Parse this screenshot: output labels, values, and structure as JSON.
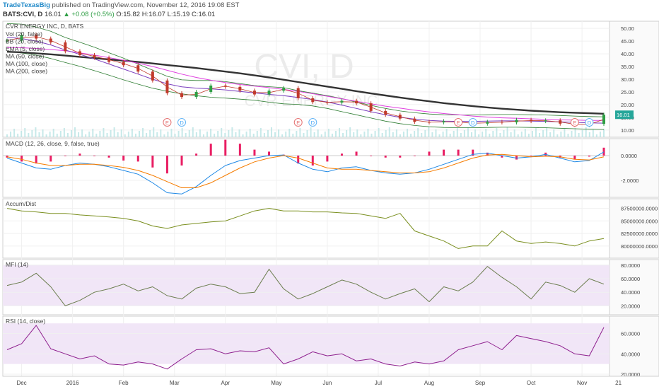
{
  "header": {
    "publisher": "TradeTexasBig",
    "published_text": "published on TradingView.com, November 12, 2016 19:08 EST",
    "symbol": "BATS:CVI, D",
    "last": "16.01",
    "change": "▲ +0.08 (+0.5%)",
    "ohlc": "O:15.82 H:16.07 L:15.19 C:16.01"
  },
  "colors": {
    "up": "#2e9e44",
    "down": "#c0392b",
    "ma200": "#333333",
    "ma100": "#e040e0",
    "ma50": "#7b3fbf",
    "bb": "#2e7d32",
    "macd": "#1e88e5",
    "signal": "#f57c00",
    "hist": "#e91e63",
    "accum": "#7a8f1f",
    "mfi": "#6b7d4e",
    "rsi": "#8e1f8e",
    "band": "#f1e6f7"
  },
  "chart_data": [
    {
      "id": "price",
      "type": "line",
      "title": "CVR ENERGY INC, D, BATS",
      "watermark": "CVI, D",
      "watermark_sub": "CVR ENERGY INC",
      "legend": [
        "Vol (20, false)",
        "BB (20, close)",
        "EMA (5, close)",
        "MA (50, close)",
        "MA (100, close)",
        "MA (200, close)"
      ],
      "ylim": [
        8,
        52
      ],
      "yticks": [
        "50.00",
        "45.00",
        "40.00",
        "35.00",
        "30.00",
        "25.00",
        "20.00",
        "15.00",
        "10.00"
      ],
      "last_label": "16.01",
      "close": [
        45.2,
        47.5,
        46.0,
        44.5,
        41.0,
        39.5,
        38.5,
        36.8,
        35.5,
        33.0,
        29.5,
        24.5,
        23.0,
        25.0,
        27.5,
        27.0,
        25.5,
        24.0,
        25.5,
        26.5,
        22.5,
        21.0,
        20.8,
        21.5,
        20.5,
        17.5,
        16.0,
        14.5,
        13.2,
        13.0,
        13.5,
        12.8,
        12.5,
        13.2,
        13.0,
        14.0,
        13.5,
        13.8,
        12.5,
        12.0,
        12.4,
        16.01
      ],
      "ma200": [
        40.8,
        40.6,
        40.2,
        39.8,
        39.3,
        38.8,
        38.3,
        37.8,
        37.3,
        36.8,
        36.2,
        35.6,
        35.0,
        34.4,
        33.7,
        33.0,
        32.3,
        31.5,
        30.7,
        29.8,
        28.9,
        28.0,
        27.1,
        26.2,
        25.3,
        24.4,
        23.6,
        22.8,
        22.0,
        21.3,
        20.6,
        20.0,
        19.4,
        18.9,
        18.4,
        18.0,
        17.6,
        17.3,
        17.0,
        16.8,
        16.6,
        16.4
      ],
      "ma100": [
        42.5,
        42.4,
        42.1,
        41.7,
        41.2,
        40.4,
        39.5,
        38.5,
        37.5,
        36.3,
        35.0,
        33.5,
        32.0,
        30.7,
        29.6,
        28.7,
        27.9,
        27.3,
        26.7,
        26.0,
        25.2,
        24.3,
        23.3,
        22.3,
        21.3,
        20.3,
        19.4,
        18.6,
        17.8,
        17.1,
        16.5,
        16.0,
        15.5,
        15.1,
        14.8,
        14.6,
        14.4,
        14.2,
        14.0,
        13.9,
        13.8,
        13.8
      ],
      "ma50": [
        46.5,
        46.0,
        45.0,
        43.5,
        41.5,
        39.8,
        38.0,
        36.0,
        34.0,
        32.0,
        30.0,
        28.2,
        27.0,
        26.5,
        26.2,
        25.8,
        25.2,
        24.6,
        24.0,
        23.5,
        22.8,
        22.0,
        21.0,
        19.8,
        18.5,
        17.2,
        16.0,
        15.0,
        14.3,
        13.8,
        13.5,
        13.4,
        13.4,
        13.5,
        13.6,
        13.6,
        13.5,
        13.4,
        13.2,
        13.0,
        12.8,
        12.7
      ],
      "events": [
        {
          "i": 11,
          "label": "E"
        },
        {
          "i": 12,
          "label": "D"
        },
        {
          "i": 20,
          "label": "E"
        },
        {
          "i": 21,
          "label": "D"
        },
        {
          "i": 31,
          "label": "E"
        },
        {
          "i": 32,
          "label": "D"
        },
        {
          "i": 39,
          "label": "E"
        },
        {
          "i": 40,
          "label": "D"
        }
      ]
    },
    {
      "id": "macd",
      "type": "line",
      "legend": "MACD (12, 26, close, 9, false, true)",
      "ylim": [
        -3.2,
        1.2
      ],
      "yticks": [
        "0.0000",
        "-2.0000"
      ],
      "macd": [
        -0.2,
        -0.6,
        -1.0,
        -1.1,
        -0.8,
        -0.6,
        -0.7,
        -0.9,
        -1.2,
        -1.5,
        -2.2,
        -3.0,
        -3.1,
        -2.5,
        -1.6,
        -0.8,
        -0.4,
        -0.2,
        0.0,
        0.05,
        -0.6,
        -1.1,
        -1.3,
        -1.0,
        -0.9,
        -1.2,
        -1.4,
        -1.5,
        -1.4,
        -1.1,
        -0.7,
        -0.3,
        0.1,
        0.2,
        0.0,
        -0.2,
        -0.1,
        0.1,
        -0.2,
        -0.5,
        -0.4,
        0.3
      ],
      "signal": [
        -0.1,
        -0.3,
        -0.6,
        -0.8,
        -0.8,
        -0.7,
        -0.7,
        -0.8,
        -0.95,
        -1.2,
        -1.6,
        -2.1,
        -2.6,
        -2.6,
        -2.2,
        -1.6,
        -1.0,
        -0.5,
        -0.2,
        0.0,
        -0.2,
        -0.6,
        -1.0,
        -1.1,
        -1.1,
        -1.2,
        -1.3,
        -1.4,
        -1.4,
        -1.3,
        -1.0,
        -0.6,
        -0.2,
        0.05,
        0.1,
        0.0,
        -0.1,
        -0.05,
        -0.1,
        -0.3,
        -0.35,
        -0.1
      ]
    },
    {
      "id": "accum",
      "type": "line",
      "legend": "Accum/Dist",
      "ylim": [
        78000000,
        89000000
      ],
      "yticks": [
        "87500000.0000",
        "85000000.0000",
        "82500000.0000",
        "80000000.0000"
      ],
      "values": [
        87.5,
        87.0,
        86.8,
        86.5,
        86.5,
        86.2,
        86.0,
        85.8,
        85.5,
        85.0,
        84.0,
        83.5,
        84.2,
        84.5,
        84.8,
        85.0,
        86.0,
        87.0,
        87.5,
        87.0,
        87.0,
        86.8,
        86.8,
        86.6,
        86.5,
        86.0,
        85.5,
        86.5,
        83.0,
        82.0,
        81.0,
        79.5,
        80.0,
        80.0,
        83.0,
        81.0,
        80.5,
        80.8,
        80.5,
        80.0,
        81.0,
        81.5
      ]
    },
    {
      "id": "mfi",
      "type": "line",
      "legend": "MFI (14)",
      "ylim": [
        10,
        85
      ],
      "yticks": [
        "80.0000",
        "60.0000",
        "40.0000",
        "20.0000"
      ],
      "band": [
        20,
        80
      ],
      "values": [
        50,
        55,
        68,
        48,
        20,
        28,
        40,
        45,
        52,
        42,
        48,
        35,
        30,
        46,
        52,
        48,
        38,
        40,
        74,
        45,
        30,
        38,
        48,
        58,
        52,
        40,
        30,
        38,
        45,
        26,
        48,
        42,
        55,
        78,
        62,
        48,
        30,
        55,
        50,
        40,
        60,
        52
      ]
    },
    {
      "id": "rsi",
      "type": "line",
      "legend": "RSI (14, close)",
      "ylim": [
        20,
        75
      ],
      "yticks": [
        "60.0000",
        "40.0000",
        "20.0000"
      ],
      "band": [
        30,
        70
      ],
      "values": [
        44,
        50,
        68,
        45,
        40,
        35,
        38,
        30,
        29,
        32,
        30,
        25,
        35,
        44,
        45,
        40,
        43,
        42,
        46,
        30,
        35,
        42,
        38,
        40,
        33,
        35,
        30,
        28,
        32,
        30,
        33,
        44,
        48,
        52,
        44,
        58,
        55,
        52,
        48,
        40,
        38,
        66
      ]
    }
  ],
  "xaxis": {
    "labels": [
      "Dec",
      "2016",
      "Feb",
      "Mar",
      "Apr",
      "May",
      "Jun",
      "Jul",
      "Aug",
      "Sep",
      "Oct",
      "Nov",
      "21"
    ],
    "label_index": [
      1.0,
      4.5,
      8.0,
      11.5,
      15.0,
      18.5,
      22.0,
      25.5,
      29.0,
      32.5,
      36.0,
      39.5,
      42.0
    ]
  }
}
